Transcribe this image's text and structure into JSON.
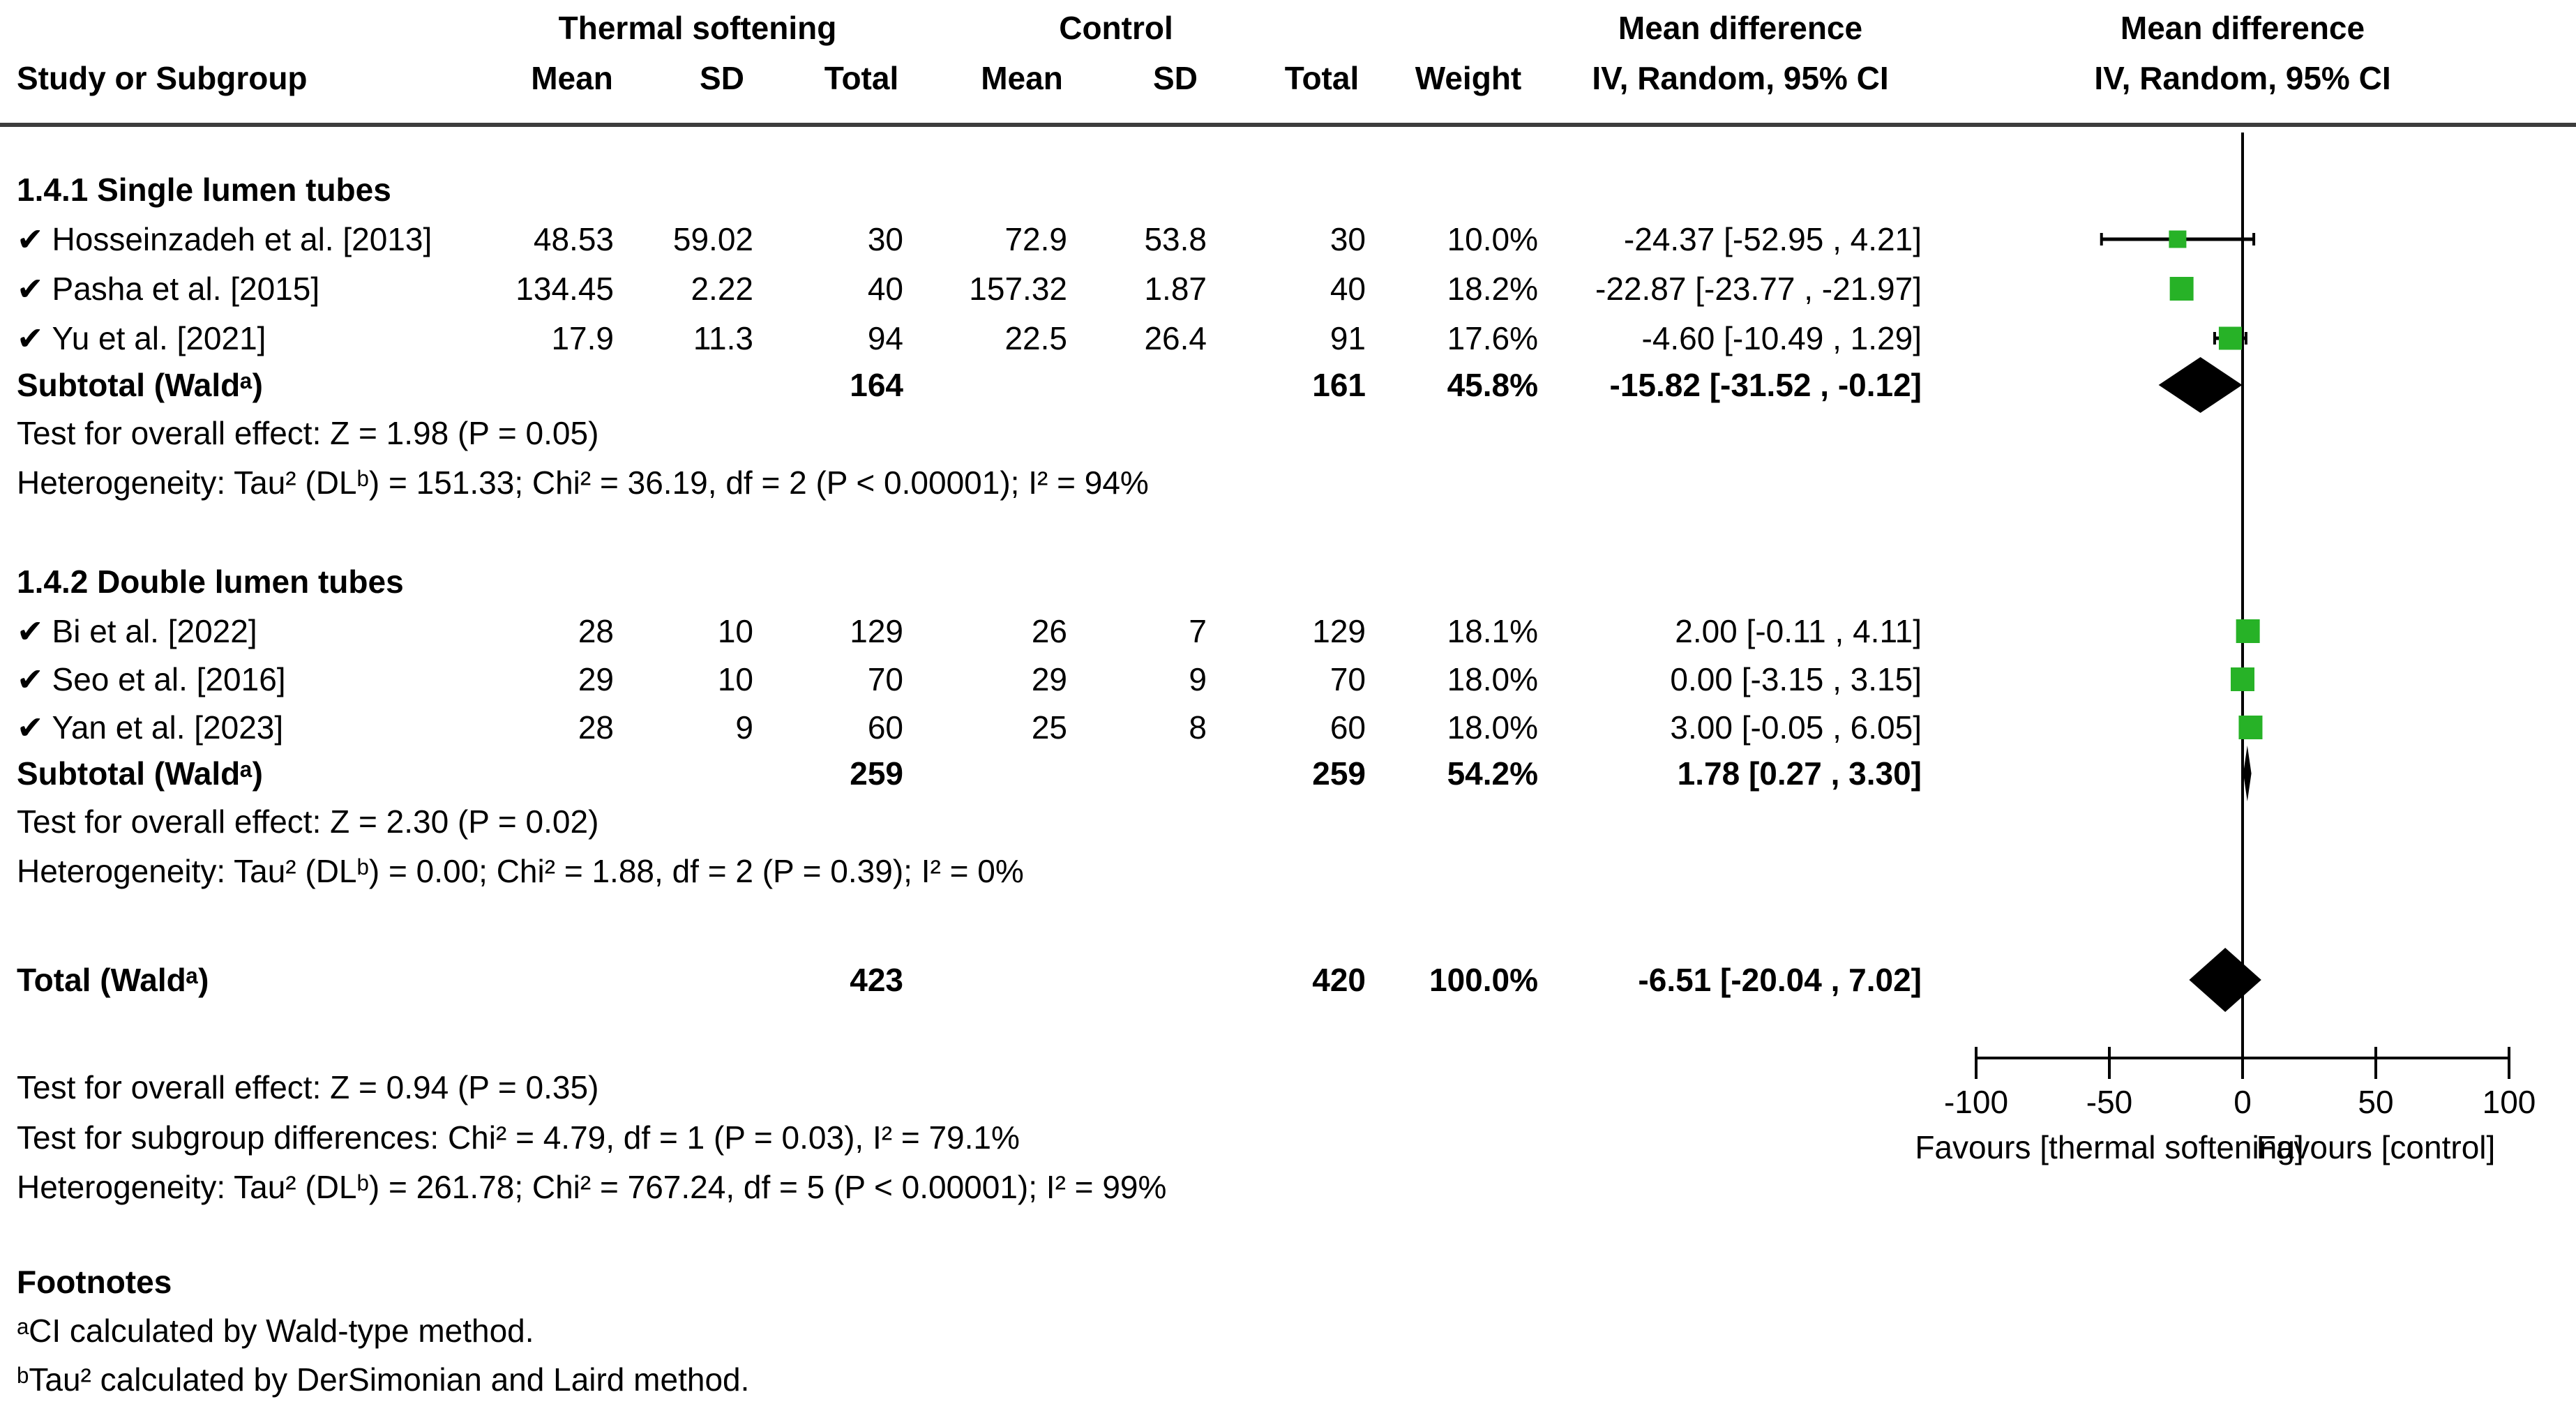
{
  "chart_data": {
    "type": "forest",
    "headers": {
      "study_col": "Study or Subgroup",
      "group1": "Thermal softening",
      "group2": "Control",
      "mean": "Mean",
      "sd": "SD",
      "total": "Total",
      "weight": "Weight",
      "effect_title": "Mean difference",
      "effect_subtitle": "IV, Random, 95% CI",
      "plot_title": "Mean difference",
      "plot_subtitle": "IV, Random, 95% CI"
    },
    "check_glyph": "✔",
    "subgroups": [
      {
        "title": "1.4.1 Single lumen tubes",
        "studies": [
          {
            "name": "Hosseinzadeh et al. [2013]",
            "mean1": "48.53",
            "sd1": "59.02",
            "n1": "30",
            "mean2": "72.9",
            "sd2": "53.8",
            "n2": "30",
            "weight": "10.0%",
            "ci_label": "-24.37 [-52.95 , 4.21]",
            "est": -24.37,
            "lo": -52.95,
            "hi": 4.21,
            "weight_value": 10.0
          },
          {
            "name": "Pasha et al. [2015]",
            "mean1": "134.45",
            "sd1": "2.22",
            "n1": "40",
            "mean2": "157.32",
            "sd2": "1.87",
            "n2": "40",
            "weight": "18.2%",
            "ci_label": "-22.87 [-23.77 , -21.97]",
            "est": -22.87,
            "lo": -23.77,
            "hi": -21.97,
            "weight_value": 18.2
          },
          {
            "name": "Yu et al. [2021]",
            "mean1": "17.9",
            "sd1": "11.3",
            "n1": "94",
            "mean2": "22.5",
            "sd2": "26.4",
            "n2": "91",
            "weight": "17.6%",
            "ci_label": "-4.60 [-10.49 , 1.29]",
            "est": -4.6,
            "lo": -10.49,
            "hi": 1.29,
            "weight_value": 17.6
          }
        ],
        "subtotal": {
          "label": "Subtotal (Waldᵃ)",
          "n1": "164",
          "n2": "161",
          "weight": "45.8%",
          "ci_label": "-15.82 [-31.52 , -0.12]",
          "est": -15.82,
          "lo": -31.52,
          "hi": -0.12
        },
        "test_line": "Test for overall effect: Z = 1.98 (P = 0.05)",
        "het_line": "Heterogeneity: Tau² (DLᵇ) = 151.33; Chi² = 36.19, df = 2 (P < 0.00001); I² = 94%"
      },
      {
        "title": "1.4.2 Double lumen tubes",
        "studies": [
          {
            "name": "Bi et al. [2022]",
            "mean1": "28",
            "sd1": "10",
            "n1": "129",
            "mean2": "26",
            "sd2": "7",
            "n2": "129",
            "weight": "18.1%",
            "ci_label": "2.00 [-0.11 , 4.11]",
            "est": 2.0,
            "lo": -0.11,
            "hi": 4.11,
            "weight_value": 18.1
          },
          {
            "name": "Seo et al. [2016]",
            "mean1": "29",
            "sd1": "10",
            "n1": "70",
            "mean2": "29",
            "sd2": "9",
            "n2": "70",
            "weight": "18.0%",
            "ci_label": "0.00 [-3.15 , 3.15]",
            "est": 0.0,
            "lo": -3.15,
            "hi": 3.15,
            "weight_value": 18.0
          },
          {
            "name": "Yan et al. [2023]",
            "mean1": "28",
            "sd1": "9",
            "n1": "60",
            "mean2": "25",
            "sd2": "8",
            "n2": "60",
            "weight": "18.0%",
            "ci_label": "3.00 [-0.05 , 6.05]",
            "est": 3.0,
            "lo": -0.05,
            "hi": 6.05,
            "weight_value": 18.0
          }
        ],
        "subtotal": {
          "label": "Subtotal (Waldᵃ)",
          "n1": "259",
          "n2": "259",
          "weight": "54.2%",
          "ci_label": "1.78 [0.27 , 3.30]",
          "est": 1.78,
          "lo": 0.27,
          "hi": 3.3
        },
        "test_line": "Test for overall effect: Z = 2.30 (P = 0.02)",
        "het_line": "Heterogeneity: Tau² (DLᵇ) = 0.00; Chi² = 1.88, df = 2 (P = 0.39); I² = 0%"
      }
    ],
    "total": {
      "label": "Total (Waldᵃ)",
      "n1": "423",
      "n2": "420",
      "weight": "100.0%",
      "ci_label": "-6.51 [-20.04 , 7.02]",
      "est": -6.51,
      "lo": -20.04,
      "hi": 7.02
    },
    "summary_lines": [
      "Test for overall effect: Z = 0.94 (P = 0.35)",
      "Test for subgroup differences: Chi² = 4.79, df = 1 (P = 0.03), I² = 79.1%",
      "Heterogeneity: Tau² (DLᵇ) = 261.78; Chi² = 767.24, df = 5 (P < 0.00001); I² = 99%"
    ],
    "footnotes": {
      "title": "Footnotes",
      "items": [
        "ᵃCI calculated by Wald-type method.",
        "ᵇTau² calculated by DerSimonian and Laird method."
      ]
    },
    "axis": {
      "min": -100,
      "max": 100,
      "ticks": [
        "-100",
        "-50",
        "0",
        "50",
        "100"
      ],
      "tick_values": [
        -100,
        -50,
        0,
        50,
        100
      ],
      "favours_left": "Favours [thermal softening]",
      "favours_right": "Favours [control]"
    },
    "colors": {
      "square": "#27b227",
      "diamond": "#000000",
      "line": "#000000",
      "rule": "#3d3d3d"
    }
  }
}
